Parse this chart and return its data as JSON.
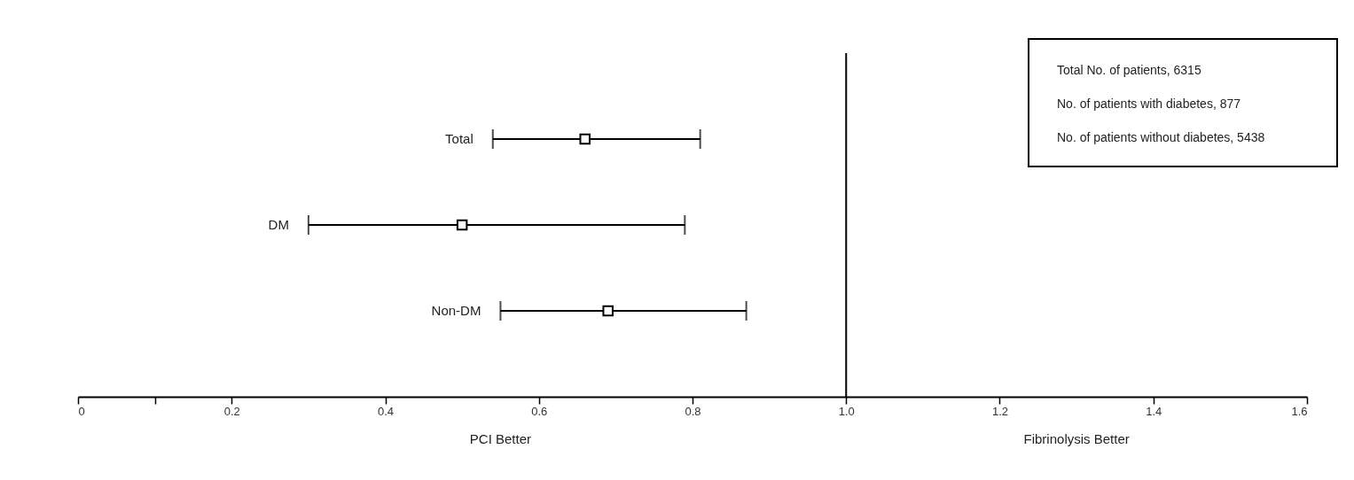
{
  "chart_data": {
    "type": "scatter",
    "orientation": "horizontal",
    "marker": "square",
    "grid": false,
    "categories": [
      "Total",
      "DM",
      "Non-DM"
    ],
    "values": [
      0.66,
      0.5,
      0.69
    ],
    "errors": [
      [
        0.54,
        0.81
      ],
      [
        0.3,
        0.79
      ],
      [
        0.55,
        0.87
      ]
    ],
    "color": "#000000",
    "xlim": [
      0,
      1.6
    ],
    "xticks": [
      0,
      {
        "value": 0.1,
        "label": null
      },
      0.2,
      0.4,
      0.6,
      0.8,
      {
        "value": 1.0,
        "label": "1.0"
      },
      1.2,
      1.4,
      1.6
    ],
    "ref_lines": [
      {
        "axis": "x",
        "value": 1.0,
        "label": null
      }
    ],
    "annotations": [
      "PCI Better",
      "Fibrinolysis Better",
      "Total No. of patients, 6315",
      "No. of patients with diabetes, 877",
      "No. of patients without diabetes, 5438"
    ]
  }
}
